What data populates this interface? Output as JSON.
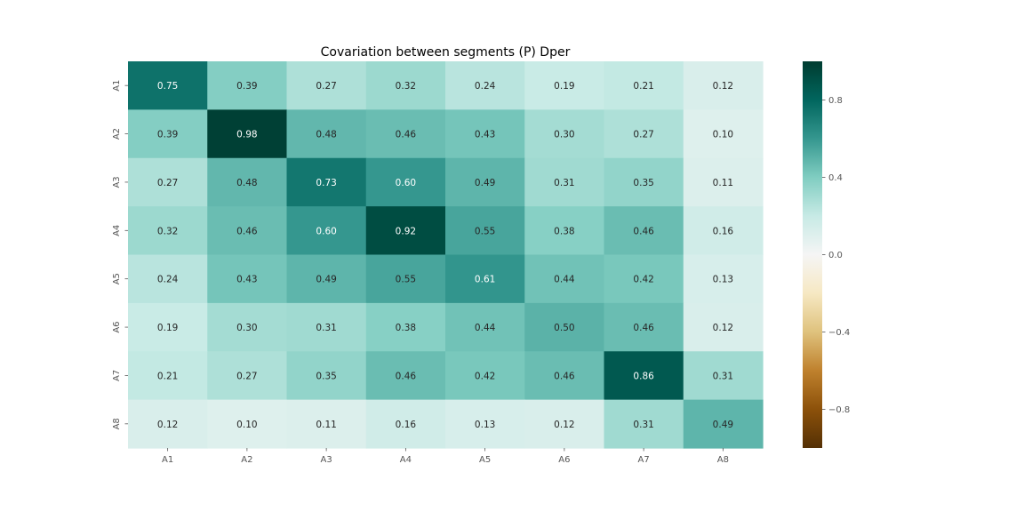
{
  "chart_data": {
    "type": "heatmap",
    "title": "Covariation between segments (P) Dper",
    "xlabel": "",
    "ylabel": "",
    "x_categories": [
      "A1",
      "A2",
      "A3",
      "A4",
      "A5",
      "A6",
      "A7",
      "A8"
    ],
    "y_categories": [
      "A1",
      "A2",
      "A3",
      "A4",
      "A5",
      "A6",
      "A7",
      "A8"
    ],
    "values": [
      [
        0.75,
        0.39,
        0.27,
        0.32,
        0.24,
        0.19,
        0.21,
        0.12
      ],
      [
        0.39,
        0.98,
        0.48,
        0.46,
        0.43,
        0.3,
        0.27,
        0.1
      ],
      [
        0.27,
        0.48,
        0.73,
        0.6,
        0.49,
        0.31,
        0.35,
        0.11
      ],
      [
        0.32,
        0.46,
        0.6,
        0.92,
        0.55,
        0.38,
        0.46,
        0.16
      ],
      [
        0.24,
        0.43,
        0.49,
        0.55,
        0.61,
        0.44,
        0.42,
        0.13
      ],
      [
        0.19,
        0.3,
        0.31,
        0.38,
        0.44,
        0.5,
        0.46,
        0.12
      ],
      [
        0.21,
        0.27,
        0.35,
        0.46,
        0.42,
        0.46,
        0.86,
        0.31
      ],
      [
        0.12,
        0.1,
        0.11,
        0.16,
        0.13,
        0.12,
        0.31,
        0.49
      ]
    ],
    "value_format": "0.00",
    "colorbar": {
      "range": [
        -1,
        1
      ],
      "ticks": [
        0.8,
        0.4,
        0.0,
        -0.4,
        -0.8
      ],
      "tick_labels": [
        "0.8",
        "0.4",
        "0.0",
        "−0.4",
        "−0.8"
      ],
      "colormap": "BrBG",
      "stops": [
        "#543005",
        "#8c510a",
        "#bf812d",
        "#dfc27d",
        "#f6e8c3",
        "#f5f5f5",
        "#c7eae5",
        "#80cdc1",
        "#35978f",
        "#01665e",
        "#003c30"
      ]
    },
    "grid": false
  }
}
